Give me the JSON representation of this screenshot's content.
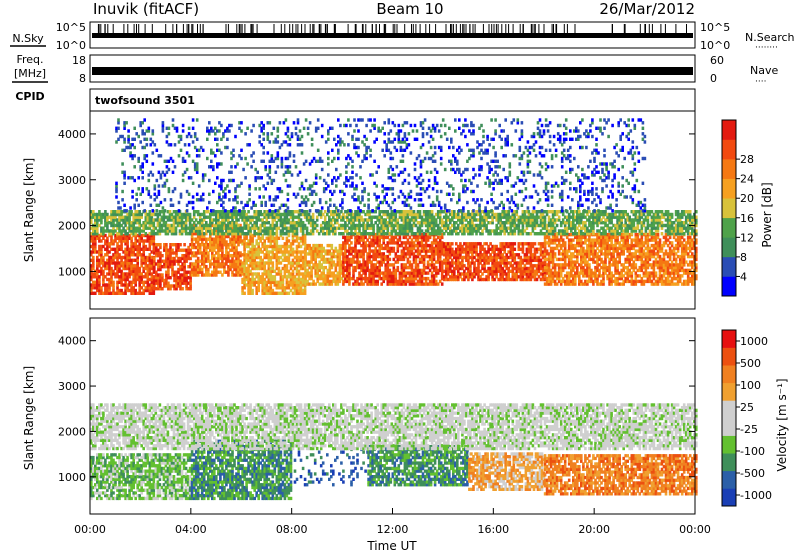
{
  "header": {
    "station": "Inuvik (fitACF)",
    "beam": "Beam 10",
    "date": "26/Mar/2012"
  },
  "nsky_panel": {
    "left_label": "N.Sky",
    "right_label": "N.Search",
    "right_legend": "········",
    "left_ticks": [
      "10^5",
      "10^0"
    ],
    "right_ticks": [
      "10^5",
      "10^0"
    ]
  },
  "freq_panel": {
    "left_label_1": "Freq.",
    "left_label_2": "[MHz]",
    "right_label": "Nave",
    "right_legend": "····",
    "left_ticks": [
      "18",
      "8"
    ],
    "right_ticks": [
      "60",
      "0"
    ]
  },
  "cpid": {
    "label": "CPID",
    "program": "twofsound 3501"
  },
  "chart_data": [
    {
      "type": "heatmap",
      "panel": "power",
      "ylabel": "Slant Range [km]",
      "ylim": [
        180,
        4500
      ],
      "yticks": [
        1000,
        2000,
        3000,
        4000
      ],
      "xlim": [
        0,
        24
      ],
      "colorbar_label": "Power [dB]",
      "colorbar_ticks": [
        "4",
        "8",
        "12",
        "16",
        "20",
        "24",
        "28"
      ],
      "colorbar_colors": [
        "#0000ff",
        "#2a4db5",
        "#3f8f5a",
        "#4fa24a",
        "#d8c23a",
        "#f6a020",
        "#f57812",
        "#f24a10",
        "#e31a10"
      ],
      "bands": [
        {
          "t": [
            0,
            2.5
          ],
          "r": [
            500,
            1800
          ],
          "level": 7
        },
        {
          "t": [
            2.5,
            4
          ],
          "r": [
            600,
            1600
          ],
          "level": 7
        },
        {
          "t": [
            4,
            6
          ],
          "r": [
            900,
            2000
          ],
          "level": 6
        },
        {
          "t": [
            6,
            8.5
          ],
          "r": [
            500,
            1800
          ],
          "level": 5
        },
        {
          "t": [
            8.5,
            10
          ],
          "r": [
            700,
            1600
          ],
          "level": 5
        },
        {
          "t": [
            10,
            14
          ],
          "r": [
            700,
            1800
          ],
          "level": 7
        },
        {
          "t": [
            14,
            18
          ],
          "r": [
            800,
            1600
          ],
          "level": 7
        },
        {
          "t": [
            18,
            24
          ],
          "r": [
            700,
            1800
          ],
          "level": 6
        },
        {
          "t": [
            0,
            24
          ],
          "r": [
            1800,
            2300
          ],
          "level": 3
        },
        {
          "t": [
            1,
            22
          ],
          "r": [
            2300,
            4300
          ],
          "level": 1
        }
      ]
    },
    {
      "type": "heatmap",
      "panel": "velocity",
      "ylabel": "Slant Range [km]",
      "xlabel": "Time UT",
      "ylim": [
        180,
        4500
      ],
      "yticks": [
        1000,
        2000,
        3000,
        4000
      ],
      "xlim": [
        0,
        24
      ],
      "xticks": [
        "00:00",
        "04:00",
        "08:00",
        "12:00",
        "16:00",
        "20:00",
        "00:00"
      ],
      "colorbar_label": "Velocity [m s⁻¹]",
      "colorbar_ticks": [
        "1000",
        "500",
        "100",
        "25",
        "-25",
        "-100",
        "-500",
        "-1000"
      ],
      "colorbar_colors": [
        "#1a3fb5",
        "#2b5fa8",
        "#3f8f5a",
        "#63c030",
        "#cfcfcf",
        "#cfcfcf",
        "#f0a030",
        "#f08020",
        "#ec5010",
        "#e61010"
      ],
      "bands": [
        {
          "t": [
            0,
            4
          ],
          "r": [
            500,
            1500
          ],
          "level": 3
        },
        {
          "t": [
            4,
            8
          ],
          "r": [
            500,
            1800
          ],
          "level": 2
        },
        {
          "t": [
            8,
            11
          ],
          "r": [
            800,
            1600
          ],
          "level": 1
        },
        {
          "t": [
            11,
            15
          ],
          "r": [
            800,
            1700
          ],
          "level": 2
        },
        {
          "t": [
            15,
            18
          ],
          "r": [
            700,
            1500
          ],
          "level": 6
        },
        {
          "t": [
            18,
            24
          ],
          "r": [
            600,
            1500
          ],
          "level": 7
        },
        {
          "t": [
            0,
            24
          ],
          "r": [
            1600,
            2600
          ],
          "level": 4
        }
      ]
    }
  ]
}
